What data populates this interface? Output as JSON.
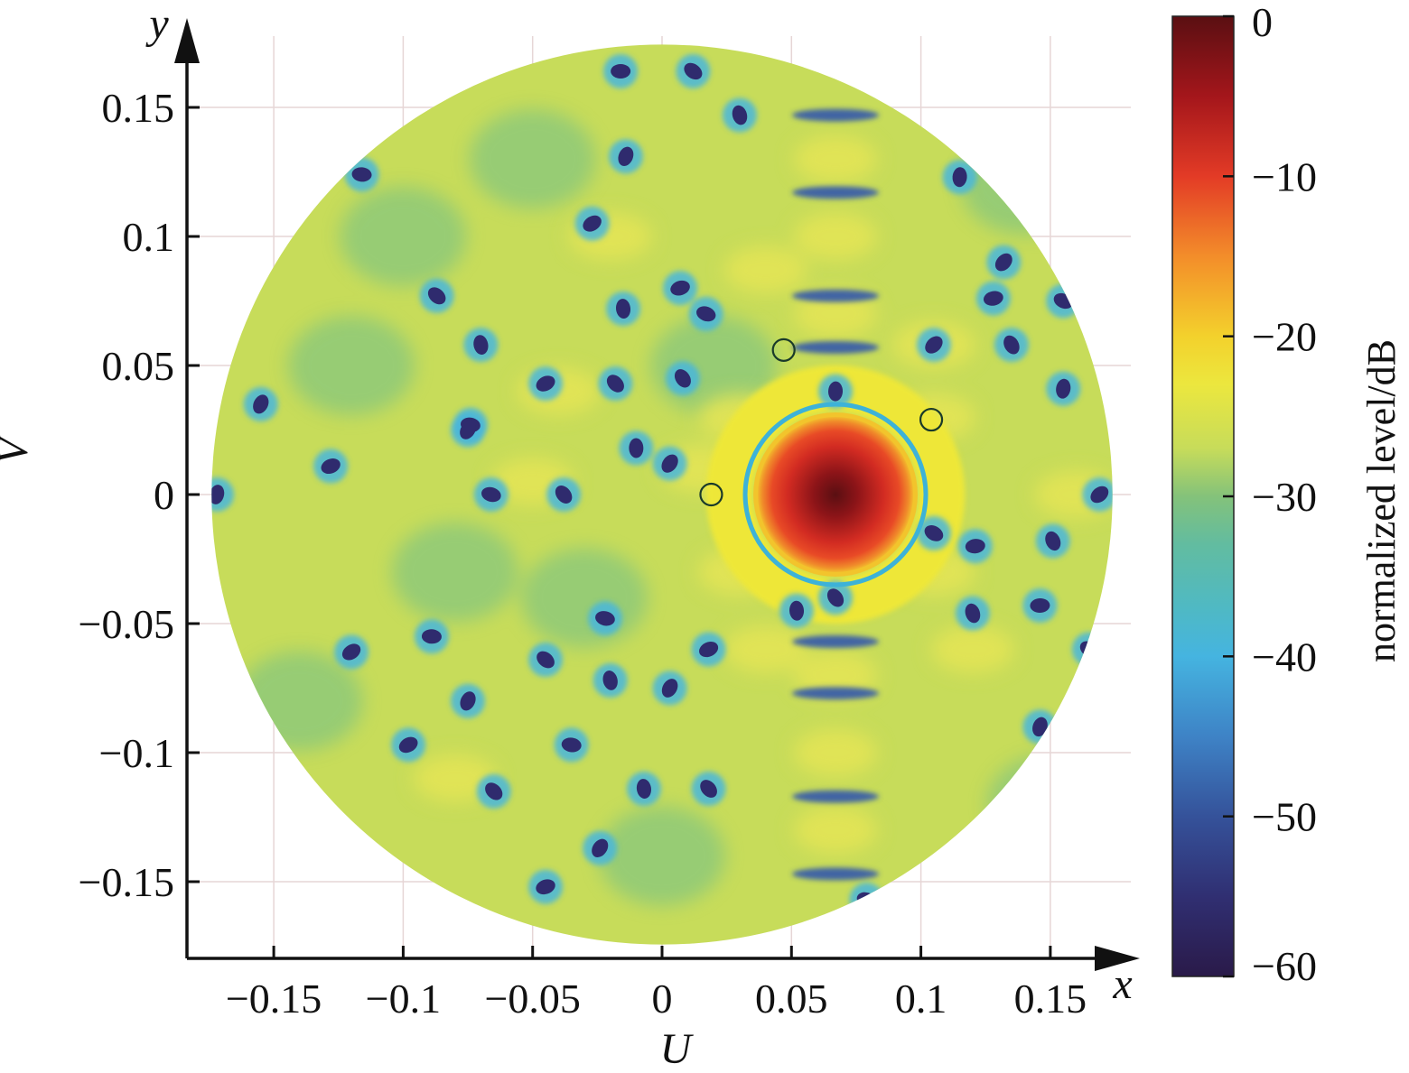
{
  "chart_data": {
    "type": "heatmap",
    "title": "",
    "xlabel": "U",
    "ylabel": "V",
    "x_axis_arrow_label": "x",
    "y_axis_arrow_label": "y",
    "xlim": [
      -0.175,
      0.175
    ],
    "ylim": [
      -0.175,
      0.175
    ],
    "x_ticks": [
      -0.15,
      -0.1,
      -0.05,
      0,
      0.05,
      0.1,
      0.15
    ],
    "y_ticks": [
      -0.15,
      -0.1,
      -0.05,
      0,
      0.05,
      0.1,
      0.15
    ],
    "x_tick_labels": [
      "−0.15",
      "−0.1",
      "−0.05",
      "0",
      "0.05",
      "0.1",
      "0.15"
    ],
    "y_tick_labels": [
      "−0.15",
      "−0.1",
      "−0.05",
      "0",
      "0.05",
      "0.1",
      "0.15"
    ],
    "grid": true,
    "disk_radius": 0.174,
    "background_level_db": -30,
    "main_lobe": {
      "u": 0.067,
      "v": 0.0,
      "radius": 0.03,
      "peak_db": 0
    },
    "sidelobe_ring": {
      "inner": 0.032,
      "outer": 0.05,
      "level_db": -22
    },
    "source_markers": [
      {
        "u": 0.047,
        "v": 0.056
      },
      {
        "u": 0.104,
        "v": 0.029
      },
      {
        "u": 0.019,
        "v": 0.0
      }
    ],
    "colorbar": {
      "label": "normalized level/dB",
      "range": [
        -60,
        0
      ],
      "ticks": [
        0,
        -10,
        -20,
        -30,
        -40,
        -50,
        -60
      ],
      "tick_labels": [
        "0",
        "−10",
        "−20",
        "−30",
        "−40",
        "−50",
        "−60"
      ],
      "stops": [
        {
          "db": 0,
          "color": "#5a0f12"
        },
        {
          "db": -5,
          "color": "#a4161b"
        },
        {
          "db": -10,
          "color": "#e33b26"
        },
        {
          "db": -15,
          "color": "#f38d2a"
        },
        {
          "db": -20,
          "color": "#f3d12c"
        },
        {
          "db": -23,
          "color": "#ece73e"
        },
        {
          "db": -27,
          "color": "#c7dc5a"
        },
        {
          "db": -30,
          "color": "#84c27a"
        },
        {
          "db": -33,
          "color": "#62bca0"
        },
        {
          "db": -37,
          "color": "#4fb9c4"
        },
        {
          "db": -40,
          "color": "#45b4e0"
        },
        {
          "db": -45,
          "color": "#3e83c6"
        },
        {
          "db": -50,
          "color": "#35529a"
        },
        {
          "db": -55,
          "color": "#302f72"
        },
        {
          "db": -60,
          "color": "#2a1a49"
        }
      ]
    },
    "nulls": [
      [
        -0.016,
        0.164
      ],
      [
        0.012,
        0.164
      ],
      [
        0.03,
        0.147
      ],
      [
        -0.014,
        0.131
      ],
      [
        -0.027,
        0.105
      ],
      [
        -0.116,
        0.124
      ],
      [
        -0.087,
        0.077
      ],
      [
        -0.07,
        0.058
      ],
      [
        -0.155,
        0.035
      ],
      [
        -0.045,
        0.043
      ],
      [
        -0.074,
        0.027
      ],
      [
        -0.018,
        0.043
      ],
      [
        -0.015,
        0.072
      ],
      [
        -0.075,
        0.025
      ],
      [
        -0.128,
        0.011
      ],
      [
        -0.066,
        0.0
      ],
      [
        -0.038,
        0.0
      ],
      [
        -0.01,
        0.018
      ],
      [
        0.003,
        0.012
      ],
      [
        0.007,
        0.08
      ],
      [
        0.017,
        0.07
      ],
      [
        0.008,
        0.045
      ],
      [
        0.115,
        0.123
      ],
      [
        0.132,
        0.09
      ],
      [
        0.128,
        0.076
      ],
      [
        0.155,
        0.075
      ],
      [
        0.135,
        0.058
      ],
      [
        0.155,
        0.041
      ],
      [
        0.105,
        0.058
      ],
      [
        0.121,
        -0.02
      ],
      [
        0.105,
        -0.015
      ],
      [
        0.151,
        -0.018
      ],
      [
        -0.172,
        0.0
      ],
      [
        0.169,
        0.0
      ],
      [
        0.146,
        -0.043
      ],
      [
        0.165,
        -0.06
      ],
      [
        0.12,
        -0.046
      ],
      [
        0.146,
        -0.09
      ],
      [
        -0.12,
        -0.061
      ],
      [
        -0.089,
        -0.055
      ],
      [
        -0.045,
        -0.064
      ],
      [
        -0.02,
        -0.072
      ],
      [
        -0.075,
        -0.08
      ],
      [
        -0.098,
        -0.097
      ],
      [
        -0.035,
        -0.097
      ],
      [
        -0.065,
        -0.115
      ],
      [
        -0.007,
        -0.114
      ],
      [
        0.003,
        -0.075
      ],
      [
        0.018,
        -0.06
      ],
      [
        -0.022,
        -0.048
      ],
      [
        0.018,
        -0.114
      ],
      [
        0.052,
        -0.045
      ],
      [
        -0.024,
        -0.137
      ],
      [
        -0.045,
        -0.152
      ],
      [
        0.079,
        -0.157
      ],
      [
        0.067,
        -0.04
      ],
      [
        0.067,
        0.04
      ]
    ],
    "arcs": [
      [
        0.067,
        0.077
      ],
      [
        0.067,
        0.117
      ],
      [
        0.067,
        0.147
      ],
      [
        0.067,
        -0.077
      ],
      [
        0.067,
        -0.117
      ],
      [
        0.067,
        -0.147
      ],
      [
        0.067,
        -0.057
      ],
      [
        0.067,
        0.057
      ]
    ],
    "yellow_blobs": [
      [
        0.067,
        0.13
      ],
      [
        0.067,
        0.1
      ],
      [
        0.067,
        0.07
      ],
      [
        0.067,
        -0.07
      ],
      [
        0.067,
        -0.1
      ],
      [
        0.067,
        -0.13
      ],
      [
        0.03,
        0.03
      ],
      [
        0.03,
        -0.03
      ],
      [
        0.105,
        0.03
      ],
      [
        0.105,
        -0.03
      ],
      [
        -0.02,
        0.1
      ],
      [
        0.015,
        0.01
      ],
      [
        -0.05,
        0.005
      ],
      [
        0.16,
        0.0
      ],
      [
        0.105,
        0.058
      ],
      [
        0.04,
        0.087
      ],
      [
        0.04,
        -0.06
      ],
      [
        -0.08,
        -0.11
      ],
      [
        0.12,
        -0.06
      ],
      [
        -0.04,
        0.04
      ]
    ]
  }
}
